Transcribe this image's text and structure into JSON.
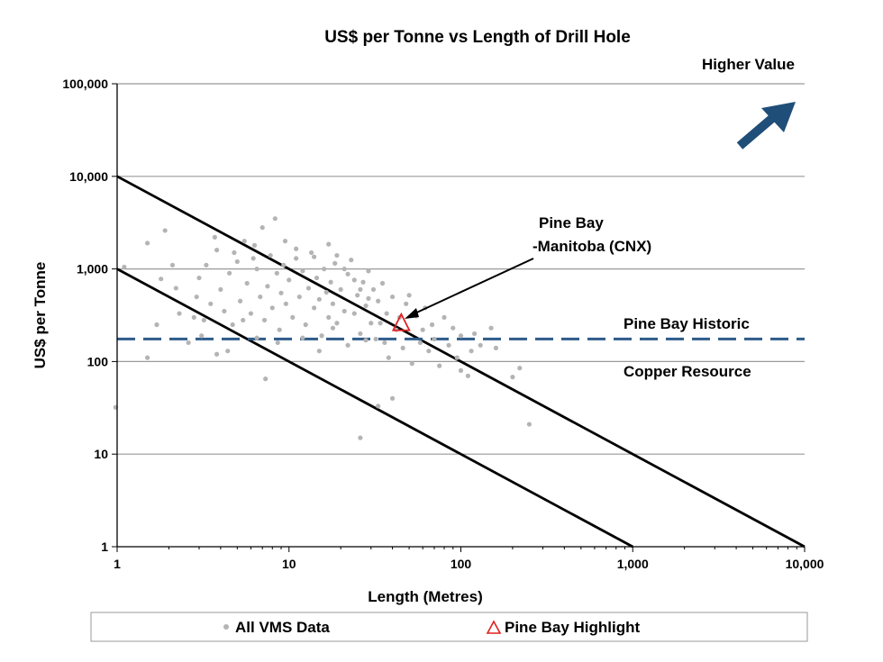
{
  "chart_data": {
    "type": "scatter",
    "title": "US$ per Tonne vs Length of Drill Hole",
    "xlabel": "Length (Metres)",
    "ylabel": "US$ per Tonne",
    "xscale": "log",
    "yscale": "log",
    "xlim": [
      1,
      10000
    ],
    "ylim": [
      1,
      100000
    ],
    "x_ticks": [
      {
        "value": 1,
        "label": "1"
      },
      {
        "value": 10,
        "label": "10"
      },
      {
        "value": 100,
        "label": "100"
      },
      {
        "value": 1000,
        "label": "1,000"
      },
      {
        "value": 10000,
        "label": "10,000"
      }
    ],
    "y_ticks": [
      {
        "value": 1,
        "label": "1"
      },
      {
        "value": 10,
        "label": "10"
      },
      {
        "value": 100,
        "label": "100"
      },
      {
        "value": 1000,
        "label": "1,000"
      },
      {
        "value": 10000,
        "label": "10,000"
      },
      {
        "value": 100000,
        "label": "100,000"
      }
    ],
    "grid": "horizontal",
    "legend_position": "bottom",
    "series": [
      {
        "name": "All VMS Data",
        "marker": "dot",
        "color": "#b4b4b4",
        "points": [
          [
            1.1,
            1050
          ],
          [
            1.5,
            1900
          ],
          [
            1.7,
            250
          ],
          [
            1.9,
            2600
          ],
          [
            2.1,
            1100
          ],
          [
            2.2,
            620
          ],
          [
            1.5,
            110
          ],
          [
            0.98,
            32
          ],
          [
            2.8,
            300
          ],
          [
            2.9,
            500
          ],
          [
            3.0,
            800
          ],
          [
            3.2,
            280
          ],
          [
            3.5,
            420
          ],
          [
            3.7,
            2200
          ],
          [
            3.8,
            1600
          ],
          [
            4.0,
            600
          ],
          [
            4.2,
            350
          ],
          [
            4.5,
            900
          ],
          [
            4.7,
            250
          ],
          [
            5.0,
            1200
          ],
          [
            5.2,
            450
          ],
          [
            5.5,
            2000
          ],
          [
            5.7,
            700
          ],
          [
            6.0,
            330
          ],
          [
            6.3,
            1800
          ],
          [
            6.5,
            1000
          ],
          [
            6.8,
            500
          ],
          [
            7.0,
            2800
          ],
          [
            7.2,
            280
          ],
          [
            7.5,
            650
          ],
          [
            7.8,
            1400
          ],
          [
            8.0,
            380
          ],
          [
            8.3,
            3500
          ],
          [
            8.5,
            900
          ],
          [
            8.8,
            220
          ],
          [
            9.0,
            550
          ],
          [
            9.3,
            1100
          ],
          [
            9.6,
            420
          ],
          [
            10,
            760
          ],
          [
            10.5,
            300
          ],
          [
            11,
            1300
          ],
          [
            11.5,
            500
          ],
          [
            12,
            950
          ],
          [
            12.5,
            250
          ],
          [
            13,
            620
          ],
          [
            13.5,
            1500
          ],
          [
            14,
            380
          ],
          [
            14.5,
            800
          ],
          [
            15,
            470
          ],
          [
            15.5,
            190
          ],
          [
            16,
            1000
          ],
          [
            16.5,
            560
          ],
          [
            17,
            300
          ],
          [
            17.5,
            720
          ],
          [
            18,
            420
          ],
          [
            18.5,
            1150
          ],
          [
            19,
            260
          ],
          [
            20,
            600
          ],
          [
            21,
            350
          ],
          [
            22,
            880
          ],
          [
            23,
            1250
          ],
          [
            24,
            330
          ],
          [
            25,
            520
          ],
          [
            26,
            200
          ],
          [
            27,
            720
          ],
          [
            28,
            400
          ],
          [
            29,
            950
          ],
          [
            30,
            260
          ],
          [
            31,
            600
          ],
          [
            32,
            175
          ],
          [
            33,
            450
          ],
          [
            34,
            260
          ],
          [
            35,
            700
          ],
          [
            36,
            160
          ],
          [
            37,
            330
          ],
          [
            38,
            110
          ],
          [
            40,
            500
          ],
          [
            42,
            220
          ],
          [
            44,
            300
          ],
          [
            46,
            140
          ],
          [
            48,
            420
          ],
          [
            50,
            520
          ],
          [
            52,
            95
          ],
          [
            55,
            310
          ],
          [
            58,
            160
          ],
          [
            60,
            220
          ],
          [
            62,
            380
          ],
          [
            65,
            130
          ],
          [
            68,
            250
          ],
          [
            70,
            175
          ],
          [
            75,
            90
          ],
          [
            80,
            300
          ],
          [
            85,
            150
          ],
          [
            90,
            230
          ],
          [
            95,
            110
          ],
          [
            100,
            190
          ],
          [
            110,
            70
          ],
          [
            115,
            130
          ],
          [
            120,
            200
          ],
          [
            130,
            150
          ],
          [
            150,
            230
          ],
          [
            160,
            140
          ],
          [
            200,
            68
          ],
          [
            220,
            85
          ],
          [
            250,
            21
          ],
          [
            100,
            80
          ],
          [
            33,
            33
          ],
          [
            26,
            15
          ],
          [
            40,
            40
          ],
          [
            7.3,
            65
          ],
          [
            3.8,
            120
          ],
          [
            6.5,
            180
          ],
          [
            4.4,
            130
          ],
          [
            5.4,
            280
          ],
          [
            8.6,
            160
          ],
          [
            12,
            180
          ],
          [
            15,
            130
          ],
          [
            18,
            230
          ],
          [
            22,
            150
          ],
          [
            28,
            170
          ],
          [
            3.1,
            190
          ],
          [
            2.6,
            160
          ],
          [
            2.3,
            330
          ],
          [
            1.8,
            780
          ],
          [
            3.3,
            1100
          ],
          [
            4.8,
            1500
          ],
          [
            6.2,
            1300
          ],
          [
            9.5,
            2000
          ],
          [
            11,
            1650
          ],
          [
            14,
            1350
          ],
          [
            17,
            1850
          ],
          [
            21,
            1000
          ],
          [
            24,
            760
          ],
          [
            19,
            1400
          ],
          [
            26,
            600
          ],
          [
            29,
            480
          ]
        ]
      },
      {
        "name": "Pine Bay Highlight",
        "marker": "triangle",
        "color": "#e02020",
        "points": [
          [
            45,
            260
          ]
        ]
      }
    ],
    "reference_lines": [
      {
        "kind": "diagonal",
        "points": [
          [
            1,
            10000
          ],
          [
            10000,
            1
          ]
        ],
        "color": "#000000"
      },
      {
        "kind": "diagonal",
        "points": [
          [
            1,
            1000
          ],
          [
            1000,
            1
          ]
        ],
        "color": "#000000"
      },
      {
        "kind": "horizontal-dashed",
        "y": 175,
        "color": "#2e5b8a"
      }
    ],
    "annotations": [
      {
        "id": "pine_bay",
        "line1": "Pine Bay",
        "line2": "-Manitoba (CNX)",
        "points_to": [
          45,
          260
        ]
      },
      {
        "id": "historic_top",
        "text": "Pine Bay Historic"
      },
      {
        "id": "historic_bottom",
        "text": "Copper Resource"
      },
      {
        "id": "higher_value",
        "text": "Higher Value"
      }
    ],
    "arrow_color": "#1f4e79"
  },
  "legend": {
    "items": [
      {
        "label": "All VMS Data",
        "symbol": "•"
      },
      {
        "label": "Pine Bay Highlight",
        "symbol": "△"
      }
    ]
  }
}
